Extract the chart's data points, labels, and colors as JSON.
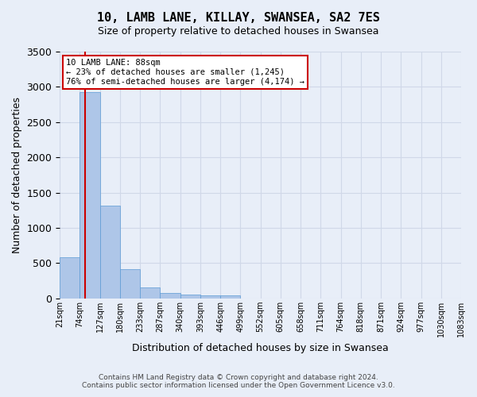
{
  "title_line1": "10, LAMB LANE, KILLAY, SWANSEA, SA2 7ES",
  "title_line2": "Size of property relative to detached houses in Swansea",
  "xlabel": "Distribution of detached houses by size in Swansea",
  "ylabel": "Number of detached properties",
  "footer_line1": "Contains HM Land Registry data © Crown copyright and database right 2024.",
  "footer_line2": "Contains public sector information licensed under the Open Government Licence v3.0.",
  "bin_labels": [
    "21sqm",
    "74sqm",
    "127sqm",
    "180sqm",
    "233sqm",
    "287sqm",
    "340sqm",
    "393sqm",
    "446sqm",
    "499sqm",
    "552sqm",
    "605sqm",
    "658sqm",
    "711sqm",
    "764sqm",
    "818sqm",
    "871sqm",
    "924sqm",
    "977sqm",
    "1030sqm",
    "1083sqm"
  ],
  "bar_values": [
    580,
    2920,
    1310,
    415,
    155,
    80,
    55,
    45,
    40,
    0,
    0,
    0,
    0,
    0,
    0,
    0,
    0,
    0,
    0,
    0
  ],
  "bar_color": "#aec6e8",
  "bar_edge_color": "#5b9bd5",
  "grid_color": "#d0d8e8",
  "background_color": "#e8eef8",
  "property_sqm": 88,
  "property_label": "10 LAMB LANE: 88sqm",
  "annotation_line1": "← 23% of detached houses are smaller (1,245)",
  "annotation_line2": "76% of semi-detached houses are larger (4,174) →",
  "red_line_color": "#cc0000",
  "annotation_box_color": "#ffffff",
  "annotation_box_edge": "#cc0000",
  "ylim": [
    0,
    3500
  ],
  "num_bins": 20
}
